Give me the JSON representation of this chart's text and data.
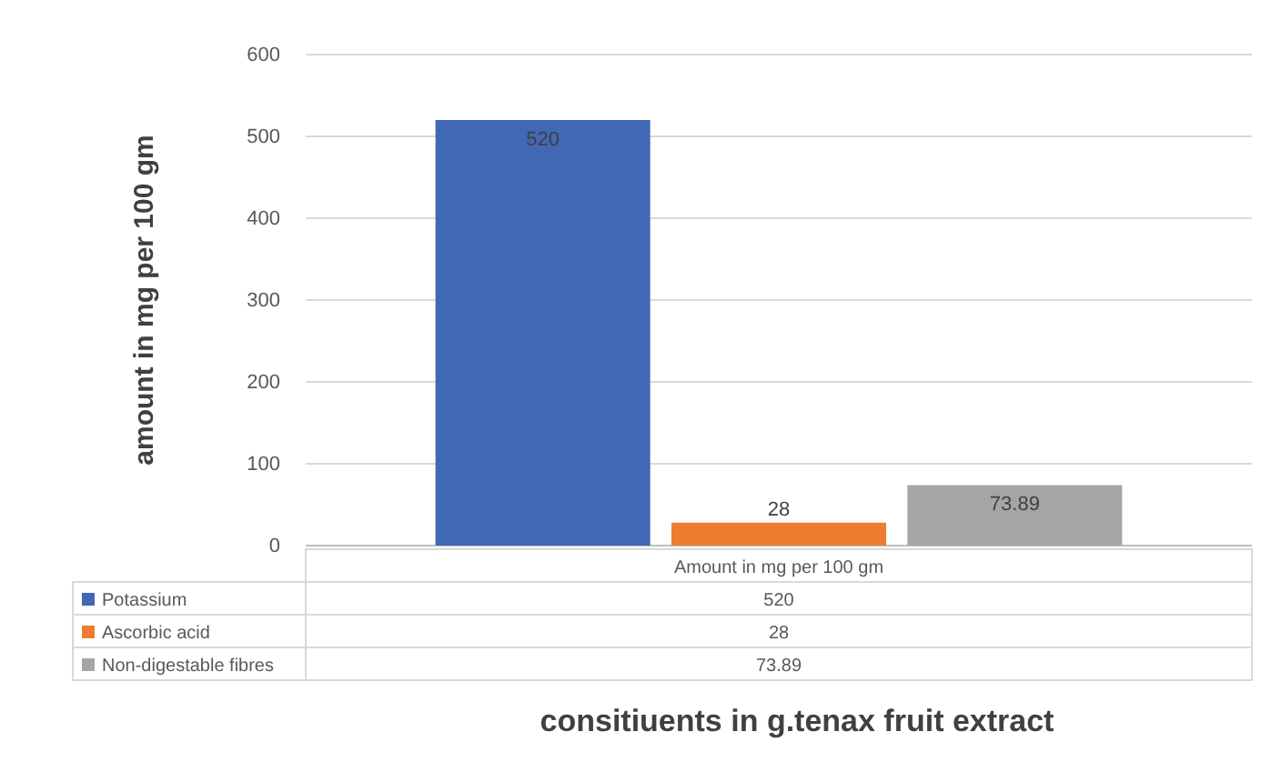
{
  "chart_data": {
    "type": "bar",
    "xlabel": "consitiuents in g.tenax fruit extract",
    "ylabel": "amount in mg per 100 gm",
    "categories": [
      "Amount in mg per 100 gm"
    ],
    "series": [
      {
        "name": "Potassium",
        "color": "#4068b4",
        "values": [
          520
        ]
      },
      {
        "name": "Ascorbic acid",
        "color": "#ed7d31",
        "values": [
          28
        ]
      },
      {
        "name": "Non-digestable fibres",
        "color": "#a5a5a5",
        "values": [
          73.89
        ]
      }
    ],
    "value_labels": [
      [
        "520"
      ],
      [
        "28"
      ],
      [
        "73.89"
      ]
    ],
    "ylim": [
      0,
      600
    ],
    "yticks": [
      0,
      100,
      200,
      300,
      400,
      500,
      600
    ],
    "grid": "y",
    "legend": "bottom"
  }
}
